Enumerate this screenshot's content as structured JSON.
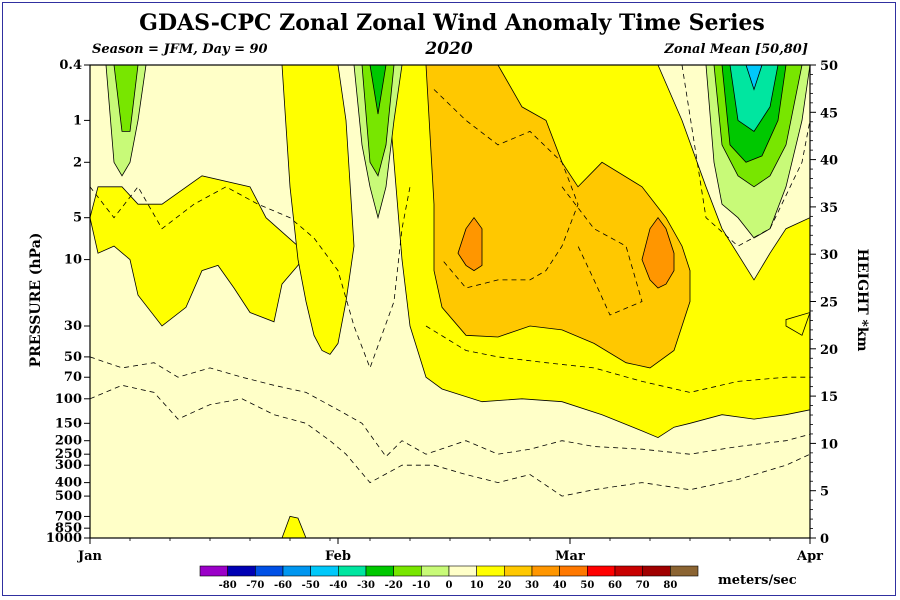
{
  "chart_data": {
    "type": "heatmap",
    "title": "GDAS-CPC Zonal Zonal Wind Anomaly Time Series",
    "season_label": "Season = JFM, Day =  90",
    "year": "2020",
    "region_label": "Zonal Mean [50,80]",
    "ylabel": "PRESSURE (hPa)",
    "y2label": "HEIGHT *km",
    "x_ticks": [
      "Jan",
      "Feb",
      "Mar",
      "Apr"
    ],
    "x_tick_days": [
      1,
      32,
      61,
      91
    ],
    "x_range_days": [
      1,
      91
    ],
    "pressure_ticks": [
      "0.4",
      "1",
      "2",
      "5",
      "10",
      "30",
      "50",
      "70",
      "100",
      "150",
      "200",
      "250",
      "300",
      "400",
      "500",
      "700",
      "850",
      "1000"
    ],
    "pressure_values": [
      0.4,
      1,
      2,
      5,
      10,
      30,
      50,
      70,
      100,
      150,
      200,
      250,
      300,
      400,
      500,
      700,
      850,
      1000
    ],
    "height_ticks": [
      "0",
      "5",
      "10",
      "15",
      "20",
      "25",
      "30",
      "35",
      "40",
      "45",
      "50"
    ],
    "height_values": [
      0,
      5,
      10,
      15,
      20,
      25,
      30,
      35,
      40,
      45,
      50
    ],
    "colorbar": {
      "units": "meters/sec",
      "labels": [
        "-80",
        "-70",
        "-60",
        "-50",
        "-40",
        "-30",
        "-20",
        "-10",
        "0",
        "10",
        "20",
        "30",
        "40",
        "50",
        "60",
        "70",
        "80"
      ],
      "colors": [
        "#9b00c8",
        "#0000b4",
        "#0050e6",
        "#0096f0",
        "#00c8fa",
        "#00e6a0",
        "#00c800",
        "#78e600",
        "#c8fa78",
        "#ffffc8",
        "#ffff00",
        "#ffc800",
        "#ff9600",
        "#ff7800",
        "#ff0000",
        "#c80000",
        "#a00000",
        "#8b6432"
      ]
    },
    "grid": false,
    "regions": [
      {
        "level": "0 to 10",
        "color": "#ffffc8",
        "description": "background weak positive anomaly"
      },
      {
        "level": "10 to 20",
        "color": "#ffff00",
        "extent_days": [
          1,
          91
        ],
        "extent_pressure_hPa": [
          0.4,
          150
        ]
      },
      {
        "level": "20 to 30",
        "color": "#ffc800",
        "extent_days": [
          43,
          76
        ],
        "extent_pressure_hPa": [
          0.4,
          60
        ]
      },
      {
        "level": "30 to 40",
        "color": "#ff9600",
        "centers": [
          {
            "day": 48,
            "pressure_hPa": 7
          },
          {
            "day": 72,
            "pressure_hPa": 10
          }
        ]
      },
      {
        "level": "-10 to 0",
        "color": "#c8fa78",
        "description": "negative anomalies near stratopause"
      },
      {
        "level": "-30 to -20",
        "color": "#00c800",
        "centers": [
          {
            "day": 4,
            "pressure_hPa": 0.5
          },
          {
            "day": 36,
            "pressure_hPa": 0.5
          },
          {
            "day": 86,
            "pressure_hPa": 1
          }
        ]
      },
      {
        "level": "-50 to -40",
        "color": "#00c8fa",
        "centers": [
          {
            "day": 84,
            "pressure_hPa": 0.5
          }
        ]
      }
    ]
  }
}
